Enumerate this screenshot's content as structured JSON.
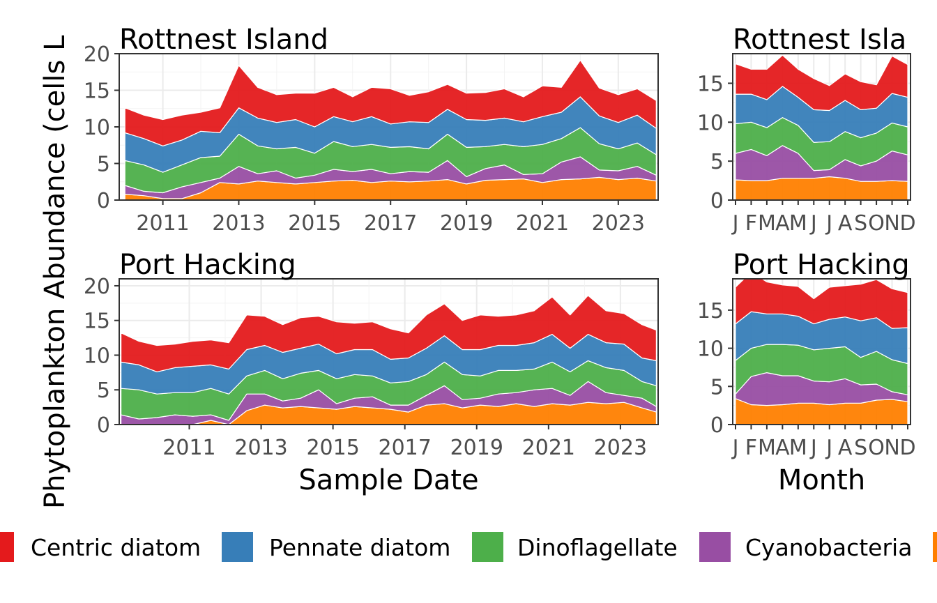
{
  "y_axis_title": "Phytoplankton Abundance (cells L",
  "legend": [
    {
      "label": "Centric diatom",
      "color": "#E41A1C"
    },
    {
      "label": "Pennate diatom",
      "color": "#377EB8"
    },
    {
      "label": "Dinoflagellate",
      "color": "#4DAF4A"
    },
    {
      "label": "Cyanobacteria",
      "color": "#984EA3"
    },
    {
      "label": "",
      "color": "#FF7F00"
    }
  ],
  "chart_data": [
    {
      "type": "area",
      "stacked": true,
      "title": "Rottnest Island",
      "xlabel": "",
      "ylabel": "",
      "x_ticks": [
        "2011",
        "2013",
        "2015",
        "2017",
        "2019",
        "2021",
        "2023"
      ],
      "y_ticks": [
        "0",
        "5",
        "10",
        "15",
        "20"
      ],
      "ylim": [
        0,
        20
      ],
      "xlim": [
        2009.85,
        2024.05
      ],
      "x": [
        2010.0,
        2010.5,
        2011.0,
        2011.5,
        2012.0,
        2012.5,
        2013.0,
        2013.5,
        2014.0,
        2014.5,
        2015.0,
        2015.5,
        2016.0,
        2016.5,
        2017.0,
        2017.5,
        2018.0,
        2018.5,
        2019.0,
        2019.5,
        2020.0,
        2020.5,
        2021.0,
        2021.5,
        2022.0,
        2022.5,
        2023.0,
        2023.5,
        2024.0
      ],
      "series": [
        {
          "name": "",
          "values": [
            0.8,
            0.6,
            0.2,
            0.2,
            1.0,
            2.4,
            2.2,
            2.6,
            2.4,
            2.2,
            2.4,
            2.6,
            2.7,
            2.4,
            2.6,
            2.5,
            2.6,
            2.8,
            2.2,
            2.7,
            2.8,
            2.9,
            2.4,
            2.8,
            2.9,
            3.1,
            2.8,
            3.0,
            2.6
          ]
        },
        {
          "name": "Cyanobacteria",
          "values": [
            1.2,
            0.6,
            0.8,
            1.6,
            1.4,
            0.6,
            2.4,
            1.0,
            1.6,
            0.8,
            1.0,
            1.6,
            1.2,
            1.8,
            1.0,
            1.4,
            1.2,
            2.6,
            1.0,
            1.6,
            2.0,
            0.6,
            1.2,
            2.4,
            3.0,
            1.0,
            1.2,
            1.6,
            0.8
          ]
        },
        {
          "name": "Dinoflagellate",
          "values": [
            3.4,
            3.6,
            2.8,
            3.0,
            3.4,
            3.0,
            4.4,
            3.8,
            3.0,
            4.2,
            3.0,
            3.8,
            3.4,
            3.4,
            3.6,
            3.4,
            3.2,
            3.6,
            4.0,
            3.0,
            2.8,
            3.8,
            4.0,
            3.2,
            4.0,
            3.6,
            3.0,
            3.2,
            2.8
          ]
        },
        {
          "name": "Pennate diatom",
          "values": [
            3.8,
            3.6,
            3.6,
            3.4,
            3.6,
            3.2,
            3.6,
            3.8,
            3.6,
            3.8,
            3.6,
            3.4,
            3.4,
            3.8,
            3.2,
            3.4,
            3.6,
            3.4,
            3.8,
            3.6,
            3.6,
            3.4,
            3.8,
            3.6,
            4.2,
            3.8,
            3.6,
            3.8,
            3.6
          ]
        },
        {
          "name": "Centric diatom",
          "values": [
            3.4,
            3.2,
            3.6,
            3.4,
            2.6,
            3.4,
            5.8,
            4.2,
            3.8,
            3.6,
            4.6,
            4.0,
            3.4,
            4.0,
            4.8,
            3.6,
            4.2,
            3.4,
            3.6,
            3.8,
            4.0,
            3.4,
            4.2,
            3.4,
            5.0,
            3.8,
            3.8,
            3.6,
            3.8
          ]
        }
      ]
    },
    {
      "type": "area",
      "stacked": true,
      "title": "Rottnest Isla",
      "xlabel": "",
      "ylabel": "",
      "x": [
        "J",
        "F",
        "M",
        "A",
        "M",
        "J",
        "J",
        "A",
        "S",
        "O",
        "N",
        "D"
      ],
      "x_ticks": [
        "J",
        "F",
        "M",
        "A",
        "M",
        "J",
        "J",
        "A",
        "S",
        "O",
        "N",
        "D"
      ],
      "y_ticks": [
        "0",
        "5",
        "10",
        "15"
      ],
      "ylim": [
        0,
        18.8
      ],
      "series": [
        {
          "name": "",
          "values": [
            2.6,
            2.5,
            2.5,
            2.8,
            2.8,
            2.8,
            3.0,
            2.8,
            2.4,
            2.4,
            2.5,
            2.4
          ]
        },
        {
          "name": "Cyanobacteria",
          "values": [
            3.4,
            4.0,
            3.2,
            4.2,
            3.2,
            1.0,
            0.9,
            2.4,
            2.0,
            2.6,
            3.8,
            3.4
          ]
        },
        {
          "name": "Dinoflagellate",
          "values": [
            3.8,
            3.5,
            3.6,
            3.6,
            3.6,
            3.6,
            3.6,
            3.6,
            3.6,
            3.6,
            3.6,
            3.6
          ]
        },
        {
          "name": "Pennate diatom",
          "values": [
            3.8,
            3.6,
            3.6,
            4.0,
            3.6,
            4.2,
            4.0,
            4.0,
            3.6,
            3.2,
            3.8,
            3.8
          ]
        },
        {
          "name": "Centric diatom",
          "values": [
            3.9,
            3.2,
            3.9,
            4.0,
            3.6,
            4.0,
            3.2,
            3.4,
            3.6,
            3.0,
            4.8,
            4.2
          ]
        }
      ]
    },
    {
      "type": "area",
      "stacked": true,
      "title": "Port Hacking",
      "xlabel": "Sample Date",
      "ylabel": "",
      "x_ticks": [
        "2011",
        "2013",
        "2015",
        "2017",
        "2019",
        "2021",
        "2023"
      ],
      "y_ticks": [
        "0",
        "5",
        "10",
        "15",
        "20"
      ],
      "ylim": [
        0,
        21
      ],
      "xlim": [
        2009.05,
        2024.05
      ],
      "x": [
        2009.1,
        2009.6,
        2010.1,
        2010.6,
        2011.1,
        2011.6,
        2012.1,
        2012.6,
        2013.1,
        2013.6,
        2014.1,
        2014.6,
        2015.1,
        2015.6,
        2016.1,
        2016.6,
        2017.1,
        2017.6,
        2018.1,
        2018.6,
        2019.1,
        2019.6,
        2020.1,
        2020.6,
        2021.1,
        2021.6,
        2022.1,
        2022.6,
        2023.1,
        2023.6,
        2024.0
      ],
      "series": [
        {
          "name": "",
          "values": [
            0.0,
            0.0,
            0.0,
            0.0,
            0.0,
            0.6,
            0.0,
            2.0,
            2.8,
            2.4,
            2.6,
            2.4,
            2.2,
            2.6,
            2.4,
            2.2,
            1.8,
            2.8,
            3.0,
            2.4,
            2.8,
            2.6,
            3.0,
            2.6,
            3.0,
            2.8,
            3.2,
            3.0,
            3.2,
            2.4,
            1.8
          ]
        },
        {
          "name": "Cyanobacteria",
          "values": [
            1.4,
            0.8,
            1.0,
            1.4,
            1.2,
            0.8,
            0.6,
            2.4,
            1.6,
            1.0,
            1.2,
            2.6,
            0.8,
            1.2,
            1.6,
            0.6,
            1.0,
            1.4,
            2.6,
            1.2,
            1.0,
            1.8,
            1.6,
            2.4,
            2.2,
            1.4,
            3.0,
            1.6,
            1.0,
            1.4,
            0.8
          ]
        },
        {
          "name": "Dinoflagellate",
          "values": [
            3.8,
            4.2,
            3.4,
            3.2,
            3.4,
            3.8,
            3.8,
            2.6,
            3.4,
            3.2,
            3.6,
            2.8,
            3.6,
            3.4,
            3.0,
            3.2,
            3.4,
            3.0,
            3.4,
            3.6,
            3.2,
            3.4,
            3.2,
            3.0,
            3.8,
            3.4,
            3.0,
            3.6,
            3.6,
            2.4,
            3.0
          ]
        },
        {
          "name": "Pennate diatom",
          "values": [
            3.8,
            3.6,
            3.2,
            3.6,
            3.8,
            3.4,
            3.6,
            3.8,
            3.6,
            3.8,
            3.6,
            3.8,
            3.6,
            3.6,
            3.8,
            3.4,
            3.4,
            3.8,
            3.8,
            3.6,
            3.8,
            3.6,
            3.6,
            3.8,
            4.0,
            3.4,
            3.8,
            3.6,
            3.8,
            3.4,
            3.6
          ]
        },
        {
          "name": "Centric diatom",
          "values": [
            4.2,
            3.4,
            3.8,
            3.4,
            3.6,
            3.6,
            3.8,
            5.0,
            4.2,
            4.0,
            4.4,
            4.0,
            4.6,
            3.8,
            4.0,
            4.4,
            3.6,
            4.8,
            4.6,
            4.2,
            5.0,
            4.2,
            4.4,
            4.6,
            5.4,
            4.8,
            5.6,
            4.6,
            4.4,
            4.8,
            4.4
          ]
        }
      ]
    },
    {
      "type": "area",
      "stacked": true,
      "title": "Port Hacking",
      "xlabel": "Month",
      "ylabel": "",
      "x": [
        "J",
        "F",
        "M",
        "A",
        "M",
        "J",
        "J",
        "A",
        "S",
        "O",
        "N",
        "D"
      ],
      "x_ticks": [
        "J",
        "F",
        "M",
        "A",
        "M",
        "J",
        "J",
        "A",
        "S",
        "O",
        "N",
        "D"
      ],
      "y_ticks": [
        "0",
        "5",
        "10",
        "15"
      ],
      "ylim": [
        0,
        19.1
      ],
      "series": [
        {
          "name": "",
          "values": [
            3.4,
            2.6,
            2.5,
            2.6,
            2.8,
            2.8,
            2.6,
            2.8,
            2.8,
            3.2,
            3.3,
            3.0
          ]
        },
        {
          "name": "Cyanobacteria",
          "values": [
            0.6,
            3.7,
            4.3,
            3.8,
            3.6,
            2.9,
            3.0,
            3.2,
            2.4,
            2.1,
            1.0,
            0.9
          ]
        },
        {
          "name": "Dinoflagellate",
          "values": [
            4.4,
            3.7,
            3.7,
            4.1,
            4.0,
            4.1,
            4.4,
            4.2,
            3.6,
            4.3,
            4.2,
            4.1
          ]
        },
        {
          "name": "Pennate diatom",
          "values": [
            4.8,
            4.8,
            4.0,
            4.0,
            3.8,
            3.4,
            3.8,
            3.9,
            4.8,
            4.4,
            4.1,
            4.7
          ]
        },
        {
          "name": "Centric diatom",
          "values": [
            4.8,
            5.2,
            4.2,
            3.8,
            3.9,
            3.3,
            4.2,
            4.1,
            4.8,
            5.0,
            5.2,
            4.6
          ]
        }
      ]
    }
  ]
}
